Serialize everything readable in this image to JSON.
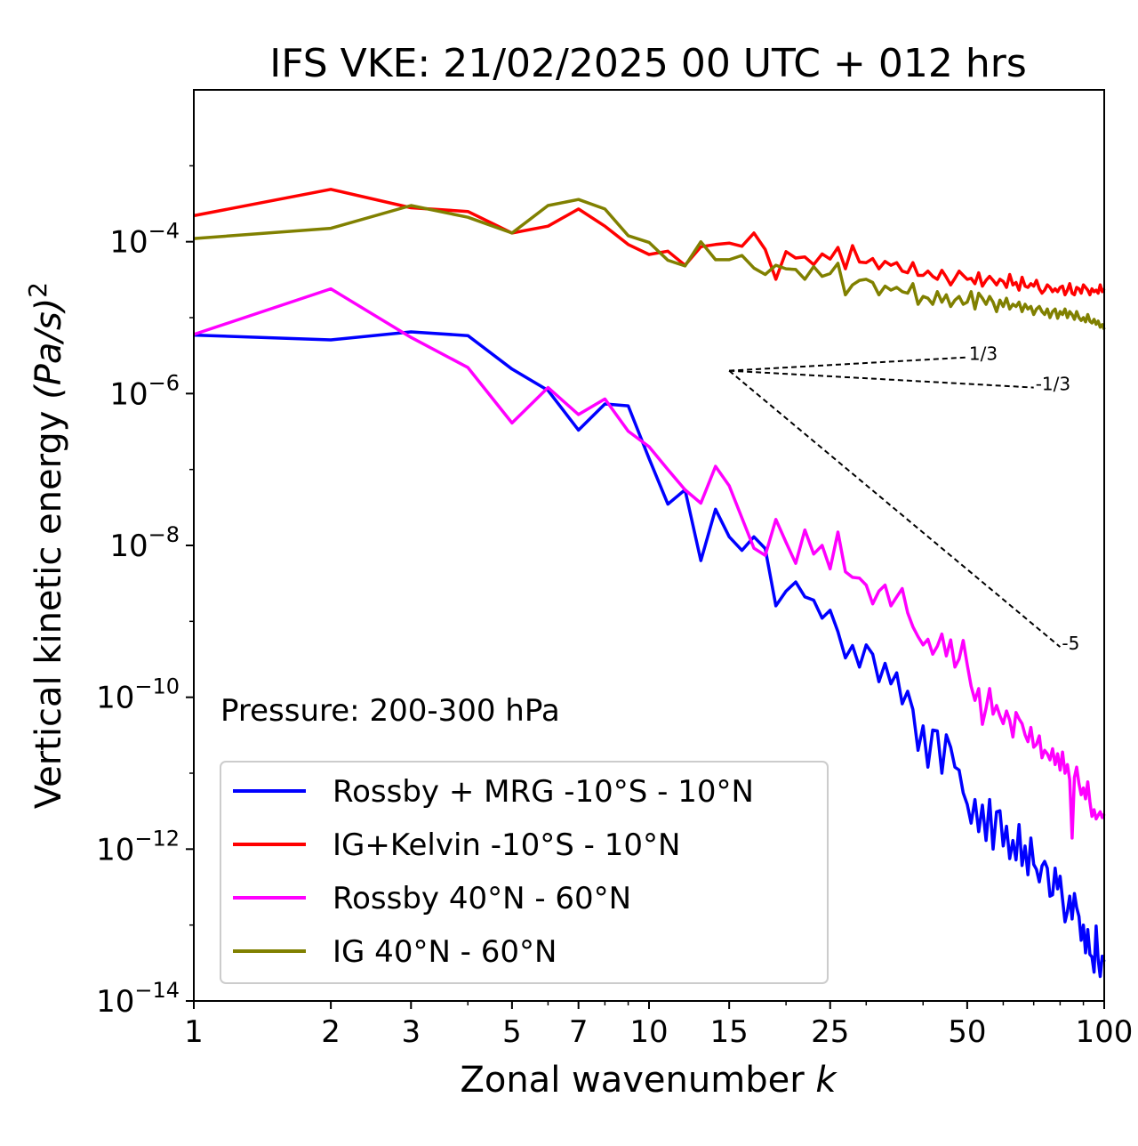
{
  "chart_data": {
    "type": "line",
    "title": "IFS VKE: 21/02/2025 00 UTC + 012 hrs",
    "xlabel_text": "Zonal wavenumber ",
    "xlabel_var": "k",
    "ylabel_text": "Vertical kinetic energy ",
    "ylabel_unit": "(Pa/s)",
    "ylabel_exp": "2",
    "x_scale": "log",
    "y_scale": "log",
    "xlim": [
      1,
      100
    ],
    "ylim": [
      1e-14,
      0.01
    ],
    "x_ticks": [
      1,
      2,
      3,
      5,
      7,
      10,
      15,
      25,
      50,
      100
    ],
    "x_tick_labels": [
      "1",
      "2",
      "3",
      "5",
      "7",
      "10",
      "15",
      "25",
      "50",
      "100"
    ],
    "y_ticks": [
      {
        "base": "10",
        "exp": "−4",
        "value": 0.0001
      },
      {
        "base": "10",
        "exp": "−6",
        "value": 1e-06
      },
      {
        "base": "10",
        "exp": "−8",
        "value": 1e-08
      },
      {
        "base": "10",
        "exp": "−10",
        "value": 1e-10
      },
      {
        "base": "10",
        "exp": "−12",
        "value": 1e-12
      },
      {
        "base": "10",
        "exp": "−14",
        "value": 1e-14
      }
    ],
    "annotation": "Pressure: 200-300 hPa",
    "legend_position": "lower-left",
    "grid": false,
    "series": [
      {
        "name": "Rossby + MRG -10°S - 10°N",
        "color": "#0000ff",
        "x": [
          1,
          2,
          3,
          4,
          5,
          6,
          7,
          8,
          9,
          10,
          11,
          12,
          13,
          14,
          15,
          16,
          17,
          18,
          19,
          20,
          21,
          22,
          23,
          24,
          25,
          26,
          27,
          28,
          29,
          30,
          31,
          32,
          33,
          34,
          35,
          36,
          37,
          38,
          39,
          40,
          41,
          42,
          43,
          44,
          45,
          46,
          47,
          48,
          49,
          50,
          51,
          52,
          53,
          54,
          55,
          56,
          57,
          58,
          59,
          60,
          61,
          62,
          63,
          64,
          65,
          66,
          67,
          68,
          69,
          70,
          71,
          72,
          73,
          74,
          75,
          76,
          77,
          78,
          79,
          80,
          81,
          82,
          83,
          84,
          85,
          86,
          87,
          88,
          89,
          90,
          91,
          92,
          93,
          94,
          95,
          96,
          97,
          98,
          99,
          100
        ],
        "y": [
          5.9e-06,
          5.1e-06,
          6.5e-06,
          5.8e-06,
          2.1e-06,
          1.1e-06,
          3.3e-07,
          7.3e-07,
          6.9e-07,
          1.4e-07,
          3.5e-08,
          5.4e-08,
          6.3e-09,
          3e-08,
          1.3e-08,
          8.6e-09,
          1.3e-08,
          9.1e-09,
          1.6e-09,
          2.5e-09,
          3.3e-09,
          2.1e-09,
          1.9e-09,
          1.1e-09,
          1.4e-09,
          7.3e-10,
          3.3e-10,
          4.8e-10,
          2.5e-10,
          4.9e-10,
          3.7e-10,
          1.6e-10,
          2.8e-10,
          1.5e-10,
          2.1e-10,
          8.2e-11,
          1.2e-10,
          6.9e-11,
          2e-11,
          4.2e-11,
          1.2e-11,
          3.7e-11,
          3.6e-11,
          1e-11,
          3.2e-11,
          2.2e-11,
          1.2e-11,
          1.1e-11,
          5.5e-12,
          3.9e-12,
          2.2e-12,
          4.5e-12,
          1.7e-12,
          3.8e-12,
          1.3e-12,
          4.5e-12,
          1e-12,
          3.1e-12,
          3.2e-12,
          1.1e-12,
          2e-12,
          7.5e-13,
          1.3e-12,
          7.2e-13,
          2.1e-12,
          6.1e-13,
          1.1e-12,
          4.6e-13,
          1.4e-12,
          6.3e-13,
          5.4e-13,
          3.7e-13,
          6e-13,
          6.9e-13,
          5.6e-13,
          2.4e-13,
          2.5e-13,
          5.6e-13,
          3e-13,
          4.4e-13,
          2.2e-13,
          1.1e-13,
          1.5e-13,
          2.4e-13,
          1.2e-13,
          2.6e-13,
          1.7e-13,
          1.3e-13,
          6.3e-14,
          1e-13,
          4.3e-14,
          8.7e-14,
          4.1e-14,
          3.8e-14,
          2.4e-14,
          9.7e-14,
          3.5e-14,
          2.1e-14,
          3.9e-14,
          3.3e-14
        ]
      },
      {
        "name": "IG+Kelvin -10°S - 10°N",
        "color": "#ff0000",
        "x": [
          1,
          2,
          3,
          4,
          5,
          6,
          7,
          8,
          9,
          10,
          11,
          12,
          13,
          14,
          15,
          16,
          17,
          18,
          19,
          20,
          21,
          22,
          23,
          24,
          25,
          26,
          27,
          28,
          29,
          30,
          31,
          32,
          33,
          34,
          35,
          36,
          37,
          38,
          39,
          40,
          41,
          42,
          43,
          44,
          45,
          46,
          47,
          48,
          49,
          50,
          51,
          52,
          53,
          54,
          55,
          56,
          57,
          58,
          59,
          60,
          61,
          62,
          63,
          64,
          65,
          66,
          67,
          68,
          69,
          70,
          71,
          72,
          73,
          74,
          75,
          76,
          77,
          78,
          79,
          80,
          81,
          82,
          83,
          84,
          85,
          86,
          87,
          88,
          89,
          90,
          91,
          92,
          93,
          94,
          95,
          96,
          97,
          98,
          99,
          100
        ],
        "y": [
          0.00022,
          0.00049,
          0.00028,
          0.00025,
          0.00013,
          0.00016,
          0.00027,
          0.00016,
          9.2e-05,
          6.8e-05,
          7.5e-05,
          4.9e-05,
          8.6e-05,
          9.2e-05,
          9.6e-05,
          8.7e-05,
          0.00013,
          7.9e-05,
          3.2e-05,
          7.4e-05,
          6.1e-05,
          6.3e-05,
          5e-05,
          6.9e-05,
          5.9e-05,
          8.4e-05,
          4.4e-05,
          8.9e-05,
          5.4e-05,
          5.3e-05,
          6e-05,
          4.4e-05,
          5.5e-05,
          4.9e-05,
          5.3e-05,
          4.1e-05,
          3.9e-05,
          5.3e-05,
          3.6e-05,
          3.6e-05,
          4.1e-05,
          3.5e-05,
          3.2e-05,
          4.2e-05,
          3.4e-05,
          2.7e-05,
          3.3e-05,
          4.1e-05,
          3.6e-05,
          3.2e-05,
          3.3e-05,
          2.8e-05,
          3.9e-05,
          2.6e-05,
          3.1e-05,
          3.5e-05,
          3.1e-05,
          2.7e-05,
          3.2e-05,
          3e-05,
          2.5e-05,
          3.7e-05,
          2.7e-05,
          2.9e-05,
          2.3e-05,
          3.4e-05,
          2.6e-05,
          2.5e-05,
          2.8e-05,
          2.6e-05,
          3.1e-05,
          2.4e-05,
          2.1e-05,
          2.3e-05,
          2.7e-05,
          2.5e-05,
          2.2e-05,
          2.4e-05,
          2.2e-05,
          2.5e-05,
          2.6e-05,
          2e-05,
          2.3e-05,
          2.8e-05,
          2.1e-05,
          2e-05,
          2.5e-05,
          2.4e-05,
          2.1e-05,
          2.7e-05,
          2.5e-05,
          2.3e-05,
          2e-05,
          2.4e-05,
          2.2e-05,
          2.3e-05,
          2.1e-05,
          2.7e-05,
          2.2e-05,
          2.4e-05
        ]
      },
      {
        "name": "Rossby 40°N - 60°N",
        "color": "#ff00ff",
        "x": [
          1,
          2,
          3,
          4,
          5,
          6,
          7,
          8,
          9,
          10,
          11,
          12,
          13,
          14,
          15,
          16,
          17,
          18,
          19,
          20,
          21,
          22,
          23,
          24,
          25,
          26,
          27,
          28,
          29,
          30,
          31,
          32,
          33,
          34,
          35,
          36,
          37,
          38,
          39,
          40,
          41,
          42,
          43,
          44,
          45,
          46,
          47,
          48,
          49,
          50,
          51,
          52,
          53,
          54,
          55,
          56,
          57,
          58,
          59,
          60,
          61,
          62,
          63,
          64,
          65,
          66,
          67,
          68,
          69,
          70,
          71,
          72,
          73,
          74,
          75,
          76,
          77,
          78,
          79,
          80,
          81,
          82,
          83,
          84,
          85,
          86,
          87,
          88,
          89,
          90,
          91,
          92,
          93,
          94,
          95,
          96,
          97,
          98,
          99,
          100
        ],
        "y": [
          6e-06,
          2.4e-05,
          5.5e-06,
          2.2e-06,
          4.1e-07,
          1.2e-06,
          5.3e-07,
          8.5e-07,
          3.2e-07,
          2e-07,
          1e-07,
          5.4e-08,
          3.6e-08,
          1.1e-07,
          6.1e-08,
          2.3e-08,
          9.2e-09,
          7.4e-09,
          2.2e-08,
          1.1e-08,
          5.8e-09,
          1.6e-08,
          7.7e-09,
          1e-08,
          4.9e-09,
          1.5e-08,
          4.5e-09,
          3.8e-09,
          3.7e-09,
          3e-09,
          1.7e-09,
          2.5e-09,
          3e-09,
          1.6e-09,
          2.1e-09,
          2.7e-09,
          1.3e-09,
          8.5e-10,
          6.3e-10,
          4.9e-10,
          5.8e-10,
          3.7e-10,
          4.7e-10,
          6.8e-10,
          3.5e-10,
          5.7e-10,
          2.5e-10,
          3.2e-10,
          5.6e-10,
          2.7e-10,
          1.4e-10,
          9.1e-11,
          1.3e-10,
          4.4e-11,
          7.2e-11,
          1.3e-10,
          6e-11,
          7.8e-11,
          5.7e-11,
          4.5e-11,
          6.6e-11,
          5e-11,
          3e-11,
          6.3e-11,
          5.2e-11,
          4.5e-11,
          3.2e-11,
          2.6e-11,
          4e-11,
          2.2e-11,
          2.4e-11,
          3.1e-11,
          1.6e-11,
          2e-11,
          1.8e-11,
          1.5e-11,
          2.1e-11,
          1.3e-11,
          1.8e-11,
          1.1e-11,
          1.9e-11,
          1e-11,
          1.3e-11,
          8.2e-12,
          1.4e-12,
          8.8e-12,
          1.2e-11,
          7.3e-12,
          5.2e-12,
          6.4e-12,
          4.6e-12,
          7.7e-12,
          4.2e-12,
          2.7e-12,
          3.3e-12,
          2.5e-12,
          2.8e-12,
          3.1e-12,
          2.6e-12,
          2.9e-12
        ]
      },
      {
        "name": "IG 40°N - 60°N",
        "color": "#808000",
        "x": [
          1,
          2,
          3,
          4,
          5,
          6,
          7,
          8,
          9,
          10,
          11,
          12,
          13,
          14,
          15,
          16,
          17,
          18,
          19,
          20,
          21,
          22,
          23,
          24,
          25,
          26,
          27,
          28,
          29,
          30,
          31,
          32,
          33,
          34,
          35,
          36,
          37,
          38,
          39,
          40,
          41,
          42,
          43,
          44,
          45,
          46,
          47,
          48,
          49,
          50,
          51,
          52,
          53,
          54,
          55,
          56,
          57,
          58,
          59,
          60,
          61,
          62,
          63,
          64,
          65,
          66,
          67,
          68,
          69,
          70,
          71,
          72,
          73,
          74,
          75,
          76,
          77,
          78,
          79,
          80,
          81,
          82,
          83,
          84,
          85,
          86,
          87,
          88,
          89,
          90,
          91,
          92,
          93,
          94,
          95,
          96,
          97,
          98,
          99,
          100
        ],
        "y": [
          0.00011,
          0.00015,
          0.0003,
          0.00021,
          0.00013,
          0.0003,
          0.00036,
          0.00027,
          0.00012,
          9.8e-05,
          5.7e-05,
          4.8e-05,
          0.0001,
          5.8e-05,
          5.8e-05,
          6.6e-05,
          4.5e-05,
          3.7e-05,
          4.9e-05,
          4.4e-05,
          4.3e-05,
          3.2e-05,
          4.7e-05,
          3.5e-05,
          3.8e-05,
          5.2e-05,
          2e-05,
          2.7e-05,
          3.1e-05,
          3.2e-05,
          2.9e-05,
          2e-05,
          2.6e-05,
          2.3e-05,
          2.5e-05,
          2.2e-05,
          2.1e-05,
          2.8e-05,
          1.5e-05,
          1.9e-05,
          1.8e-05,
          1.5e-05,
          2.2e-05,
          1.6e-05,
          2e-05,
          1.4e-05,
          1.7e-05,
          1.9e-05,
          1.5e-05,
          1.6e-05,
          2.2e-05,
          1.3e-05,
          2.1e-05,
          1.8e-05,
          1.5e-05,
          1.9e-05,
          1.6e-05,
          1.2e-05,
          1.7e-05,
          1.4e-05,
          1.8e-05,
          1.3e-05,
          1.5e-05,
          1.4e-05,
          1.6e-05,
          1.2e-05,
          1.5e-05,
          1.3e-05,
          1.4e-05,
          1.1e-05,
          1.3e-05,
          1.4e-05,
          1.2e-05,
          1.1e-05,
          1.3e-05,
          1e-05,
          1.2e-05,
          1.3e-05,
          9.8e-06,
          1.2e-05,
          1.1e-05,
          1.3e-05,
          1e-05,
          1.2e-05,
          1.1e-05,
          9.5e-06,
          1.2e-05,
          1e-05,
          9.2e-06,
          1e-05,
          8.8e-06,
          1.1e-05,
          9e-06,
          8.5e-06,
          9.5e-06,
          8.2e-06,
          9e-06,
          7.5e-06,
          8.1e-06,
          7e-06
        ]
      }
    ],
    "reference_lines": [
      {
        "label": "1/3",
        "x": [
          15,
          50
        ],
        "y": [
          2e-06,
          3e-06
        ]
      },
      {
        "label": "-1/3",
        "x": [
          15,
          70
        ],
        "y": [
          2e-06,
          1.2e-06
        ]
      },
      {
        "label": "-5",
        "x": [
          15,
          80
        ],
        "y": [
          2e-06,
          4.6e-10
        ]
      }
    ]
  }
}
